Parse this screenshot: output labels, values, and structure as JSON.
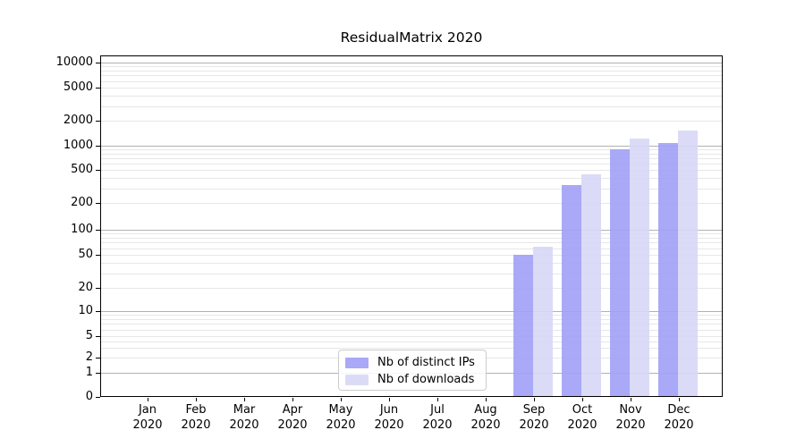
{
  "chart_data": {
    "type": "bar",
    "title": "ResidualMatrix 2020",
    "categories": [
      "Jan 2020",
      "Feb 2020",
      "Mar 2020",
      "Apr 2020",
      "May 2020",
      "Jun 2020",
      "Jul 2020",
      "Aug 2020",
      "Sep 2020",
      "Oct 2020",
      "Nov 2020",
      "Dec 2020"
    ],
    "series": [
      {
        "name": "Nb of distinct IPs",
        "color": "#a0a0f6",
        "values": [
          0,
          0,
          0,
          0,
          0,
          0,
          0,
          0,
          50,
          330,
          900,
          1080
        ]
      },
      {
        "name": "Nb of downloads",
        "color": "#d7d7f7",
        "values": [
          0,
          0,
          0,
          0,
          0,
          0,
          0,
          0,
          63,
          440,
          1220,
          1520
        ]
      }
    ],
    "x_axis": {
      "ticks": [
        {
          "line1": "Jan",
          "line2": "2020"
        },
        {
          "line1": "Feb",
          "line2": "2020"
        },
        {
          "line1": "Mar",
          "line2": "2020"
        },
        {
          "line1": "Apr",
          "line2": "2020"
        },
        {
          "line1": "May",
          "line2": "2020"
        },
        {
          "line1": "Jun",
          "line2": "2020"
        },
        {
          "line1": "Jul",
          "line2": "2020"
        },
        {
          "line1": "Aug",
          "line2": "2020"
        },
        {
          "line1": "Sep",
          "line2": "2020"
        },
        {
          "line1": "Oct",
          "line2": "2020"
        },
        {
          "line1": "Nov",
          "line2": "2020"
        },
        {
          "line1": "Dec",
          "line2": "2020"
        }
      ]
    },
    "y_axis": {
      "scale": "symlog",
      "ticks": [
        {
          "value": 10000,
          "label": "10000"
        },
        {
          "value": 5000,
          "label": "5000"
        },
        {
          "value": 2000,
          "label": "2000"
        },
        {
          "value": 1000,
          "label": "1000"
        },
        {
          "value": 500,
          "label": "500"
        },
        {
          "value": 200,
          "label": "200"
        },
        {
          "value": 100,
          "label": "100"
        },
        {
          "value": 50,
          "label": "50"
        },
        {
          "value": 20,
          "label": "20"
        },
        {
          "value": 10,
          "label": "10"
        },
        {
          "value": 5,
          "label": "5"
        },
        {
          "value": 2,
          "label": "2"
        },
        {
          "value": 1,
          "label": "1"
        },
        {
          "value": 0,
          "label": "0"
        }
      ],
      "grid": "major and minor horizontal gridlines",
      "major_grid_values": [
        1,
        10,
        100,
        1000,
        10000
      ]
    },
    "legend": {
      "position": "lower center-left inside plot",
      "entries": [
        "Nb of distinct IPs",
        "Nb of downloads"
      ]
    },
    "colors": {
      "grid_major": "#b2b2b2",
      "grid_minor": "#e7e7e7",
      "spine": "#000000",
      "background": "#ffffff"
    }
  }
}
